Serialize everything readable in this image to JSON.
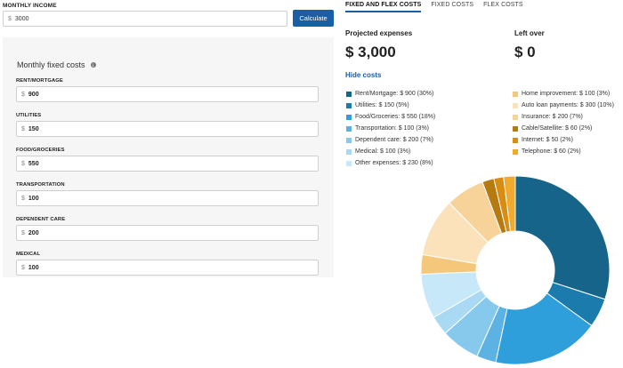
{
  "income": {
    "label": "MONTHLY INCOME",
    "currency": "$",
    "value": "3000",
    "button_label": "Calculate"
  },
  "fixed": {
    "title": "Monthly fixed costs",
    "info_icon": "i",
    "fields": [
      {
        "label": "RENT/MORTGAGE",
        "currency": "$",
        "value": "900"
      },
      {
        "label": "UTILITIES",
        "currency": "$",
        "value": "150"
      },
      {
        "label": "FOOD/GROCERIES",
        "currency": "$",
        "value": "550"
      },
      {
        "label": "TRANSPORTATION",
        "currency": "$",
        "value": "100"
      },
      {
        "label": "DEPENDENT CARE",
        "currency": "$",
        "value": "200"
      },
      {
        "label": "MEDICAL",
        "currency": "$",
        "value": "100"
      }
    ]
  },
  "tabs": [
    {
      "label": "FIXED AND FLEX COSTS",
      "active": true
    },
    {
      "label": "FIXED COSTS",
      "active": false
    },
    {
      "label": "FLEX COSTS",
      "active": false
    }
  ],
  "summary": {
    "projected_label": "Projected expenses",
    "projected_value": "$ 3,000",
    "leftover_label": "Left over",
    "leftover_value": "$ 0",
    "hide_link": "Hide costs"
  },
  "legend": {
    "left": [
      {
        "label": "Rent/Mortgage: $ 900 (30%)",
        "color": "#17648a"
      },
      {
        "label": "Utilities: $ 150 (5%)",
        "color": "#1c7bad"
      },
      {
        "label": "Food/Groceries: $ 550 (18%)",
        "color": "#2e9fdb"
      },
      {
        "label": "Transportation: $ 100 (3%)",
        "color": "#5cb3e3"
      },
      {
        "label": "Dependent care: $ 200 (7%)",
        "color": "#86c9ec"
      },
      {
        "label": "Medical: $ 100 (3%)",
        "color": "#a9d9f3"
      },
      {
        "label": "Other expenses: $ 230 (8%)",
        "color": "#c7e8f9"
      }
    ],
    "right": [
      {
        "label": "Home improvement: $ 100 (3%)",
        "color": "#f5c77a"
      },
      {
        "label": "Auto loan payments: $ 300 (10%)",
        "color": "#fbe2bb"
      },
      {
        "label": "Insurance: $ 200 (7%)",
        "color": "#f7d399"
      },
      {
        "label": "Cable/Satellite: $ 60 (2%)",
        "color": "#b57a10"
      },
      {
        "label": "Internet: $ 50 (2%)",
        "color": "#d88d12"
      },
      {
        "label": "Telephone: $ 60 (2%)",
        "color": "#f0aa2e"
      }
    ]
  },
  "chart_data": {
    "type": "pie",
    "style": "donut",
    "series": [
      {
        "label": "Rent/Mortgage",
        "value": 900,
        "color": "#17648a"
      },
      {
        "label": "Utilities",
        "value": 150,
        "color": "#1c7bad"
      },
      {
        "label": "Food/Groceries",
        "value": 550,
        "color": "#2e9fdb"
      },
      {
        "label": "Transportation",
        "value": 100,
        "color": "#5cb3e3"
      },
      {
        "label": "Dependent care",
        "value": 200,
        "color": "#86c9ec"
      },
      {
        "label": "Medical",
        "value": 100,
        "color": "#a9d9f3"
      },
      {
        "label": "Other expenses",
        "value": 230,
        "color": "#c7e8f9"
      },
      {
        "label": "Home improvement",
        "value": 100,
        "color": "#f5c77a"
      },
      {
        "label": "Auto loan payments",
        "value": 300,
        "color": "#fbe2bb"
      },
      {
        "label": "Insurance",
        "value": 200,
        "color": "#f7d399"
      },
      {
        "label": "Cable/Satellite",
        "value": 60,
        "color": "#b57a10"
      },
      {
        "label": "Internet",
        "value": 50,
        "color": "#d88d12"
      },
      {
        "label": "Telephone",
        "value": 60,
        "color": "#f0aa2e"
      }
    ]
  }
}
